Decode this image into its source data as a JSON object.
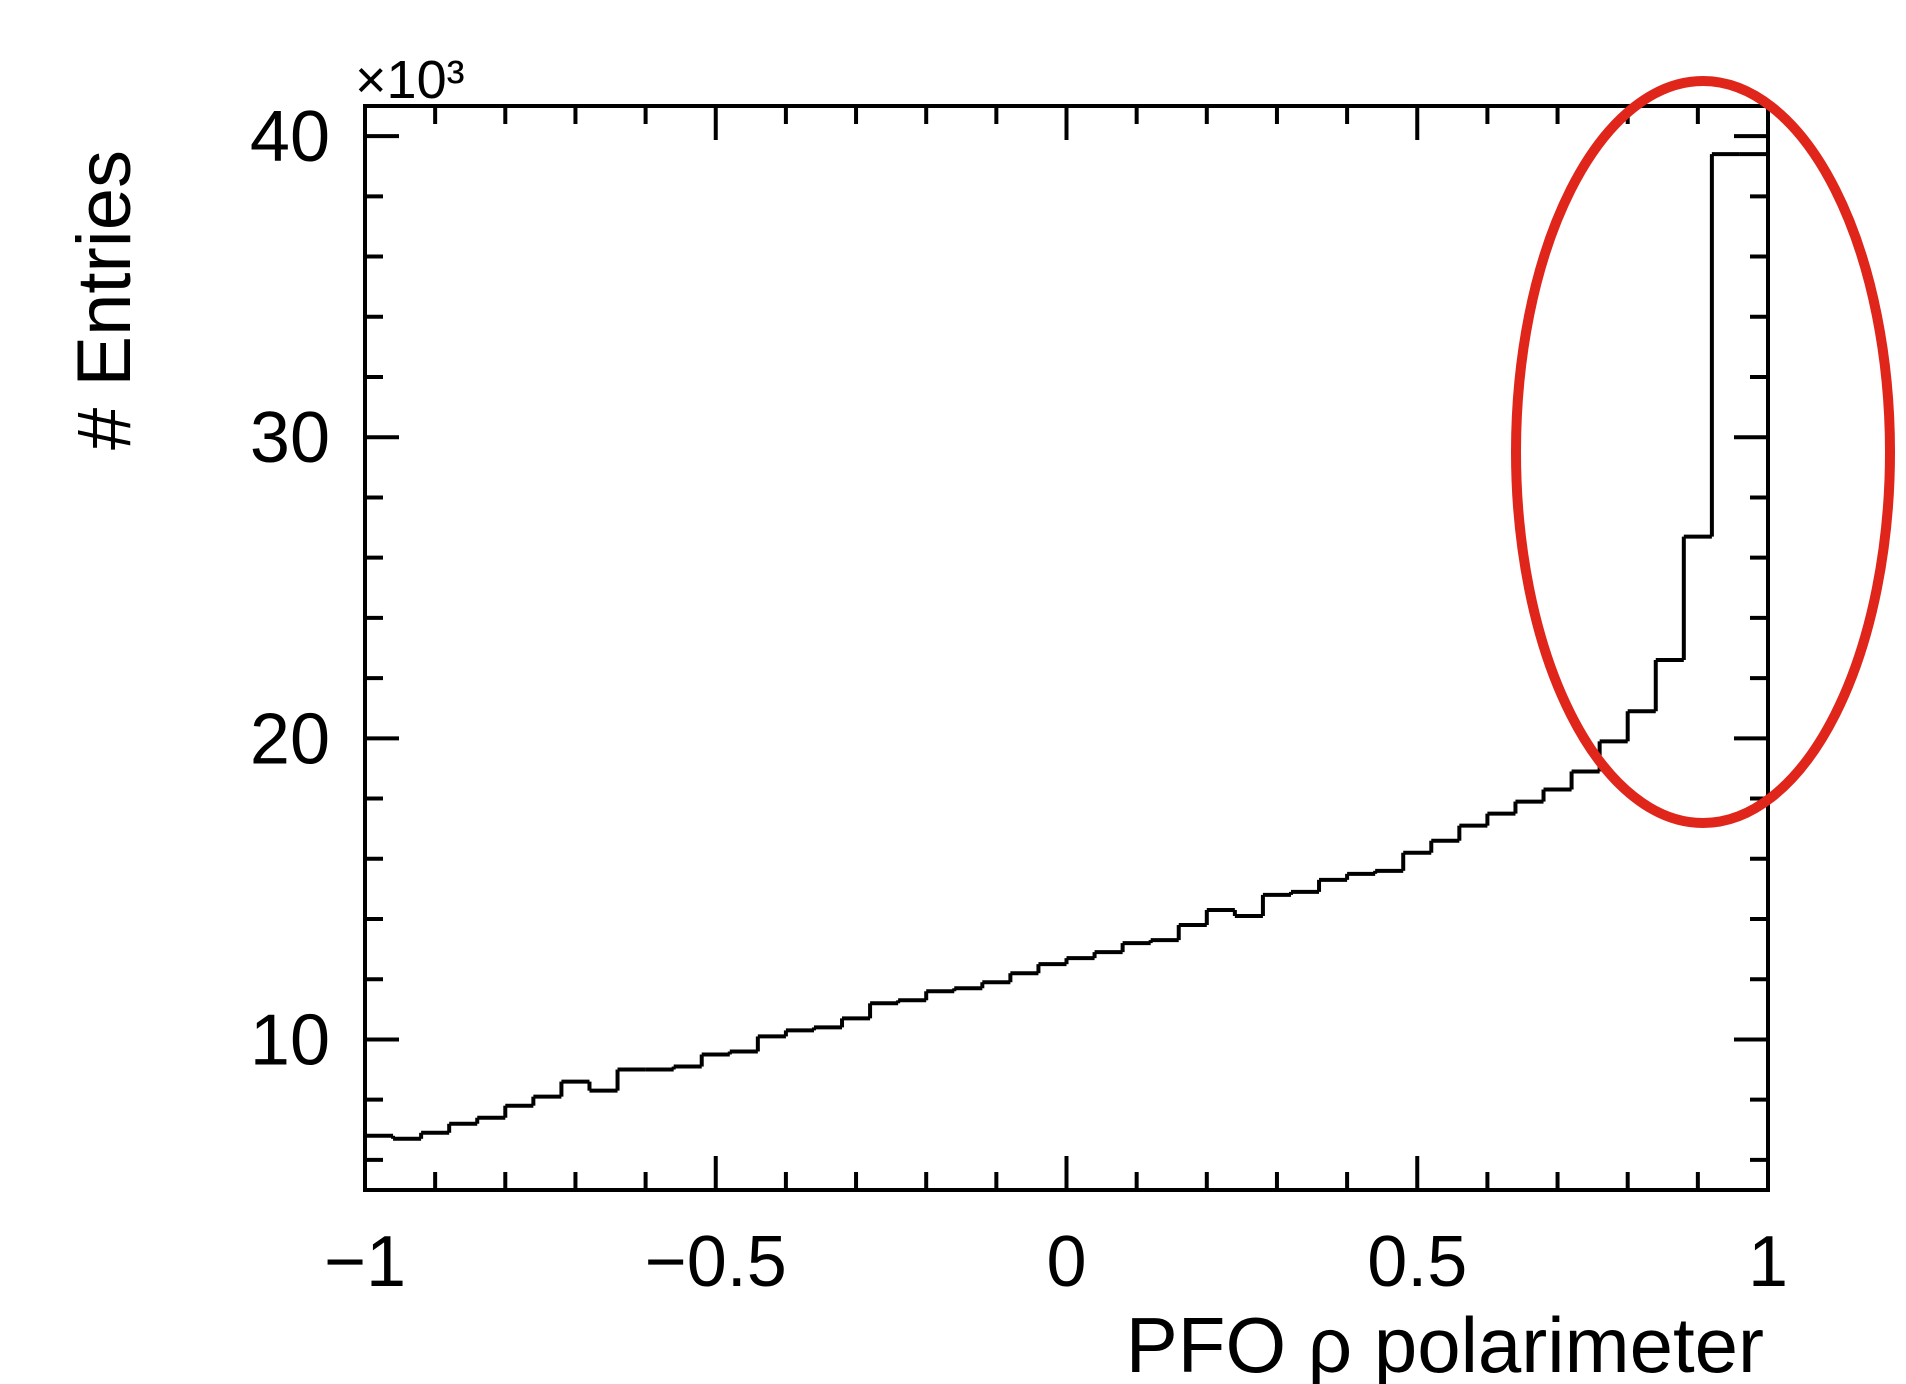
{
  "chart_data": {
    "type": "histogram",
    "xlabel": "PFO ρ polarimeter",
    "ylabel": "# Entries",
    "y_scale_label": "×10³",
    "x_ticks": [
      "−1",
      "−0.5",
      "0",
      "0.5",
      "1"
    ],
    "y_ticks": [
      "10",
      "20",
      "30",
      "40"
    ],
    "xlim": [
      -1,
      1
    ],
    "ylim": [
      5,
      41
    ],
    "grid": false,
    "unit_multiplier": 1000,
    "bin_edges": [
      -1.0,
      -0.96,
      -0.92,
      -0.88,
      -0.84,
      -0.8,
      -0.76,
      -0.72,
      -0.68,
      -0.64,
      -0.6,
      -0.56,
      -0.52,
      -0.48,
      -0.44,
      -0.4,
      -0.36,
      -0.32,
      -0.28,
      -0.24,
      -0.2,
      -0.16,
      -0.12,
      -0.08,
      -0.04,
      0.0,
      0.04,
      0.08,
      0.12,
      0.16,
      0.2,
      0.24,
      0.28,
      0.32,
      0.36,
      0.4,
      0.44,
      0.48,
      0.52,
      0.56,
      0.6,
      0.64,
      0.68,
      0.72,
      0.76,
      0.8,
      0.84,
      0.88,
      0.92,
      0.96,
      1.0
    ],
    "values": [
      6.8,
      6.7,
      6.9,
      7.2,
      7.4,
      7.8,
      8.1,
      8.6,
      8.3,
      9.0,
      9.0,
      9.1,
      9.5,
      9.6,
      10.1,
      10.3,
      10.4,
      10.7,
      11.2,
      11.3,
      11.6,
      11.7,
      11.9,
      12.2,
      12.5,
      12.7,
      12.9,
      13.2,
      13.3,
      13.8,
      14.3,
      14.1,
      14.8,
      14.9,
      15.3,
      15.5,
      15.6,
      16.2,
      16.6,
      17.1,
      17.5,
      17.9,
      18.3,
      18.9,
      19.9,
      20.9,
      22.6,
      26.7,
      39.4,
      39.4
    ],
    "annotation": {
      "shape": "ellipse",
      "color": "#e0251b",
      "note_region_x": [
        0.73,
        1.0
      ]
    },
    "colors": {
      "histogram_line": "#000000",
      "annotation": "#e0251b"
    }
  }
}
